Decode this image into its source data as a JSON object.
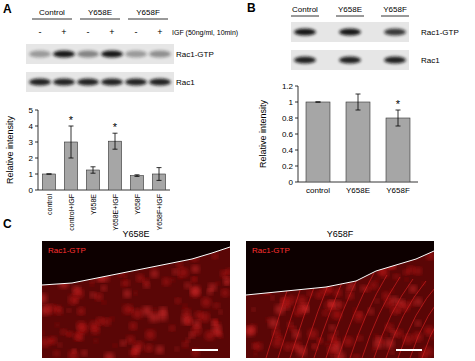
{
  "panel_labels": [
    "A",
    "B",
    "C"
  ],
  "blots": [
    {
      "groups": [
        "Control",
        "Y658E",
        "Y658F"
      ],
      "treatment_label": "IGF (50ng/ml, 10min)",
      "treatment_marks": [
        "-",
        "+",
        "-",
        "+",
        "-",
        "+"
      ],
      "rows": [
        "Rac1-GTP",
        "Rac1"
      ]
    },
    {
      "groups": [
        "Control",
        "Y658E",
        "Y658F"
      ],
      "rows": [
        "Rac1-GTP",
        "Rac1"
      ]
    }
  ],
  "images": {
    "titles": [
      "Y658E",
      "Y658F"
    ],
    "stain": "Rac1-GTP"
  },
  "chart_data": [
    {
      "type": "bar",
      "y_label": "Relative intensity",
      "categories": [
        "control",
        "control+IGF",
        "Y658E",
        "Y658E+IGF",
        "Y658F",
        "Y658F+IGF"
      ],
      "values": [
        1,
        3.0,
        1.25,
        3.05,
        0.9,
        1.0
      ],
      "errors": [
        0,
        1.0,
        0.2,
        0.5,
        0.05,
        0.4
      ],
      "significance": [
        null,
        "*",
        null,
        "*",
        null,
        null
      ],
      "color": "#a6a6a6",
      "ylim": [
        0,
        5
      ],
      "yticks": [
        0,
        1,
        2,
        3,
        4,
        5
      ]
    },
    {
      "type": "bar",
      "y_label": "Relative intensity",
      "categories": [
        "control",
        "Y658E",
        "Y658F"
      ],
      "values": [
        1,
        1.0,
        0.8
      ],
      "errors": [
        0,
        0.1,
        0.1
      ],
      "significance": [
        null,
        null,
        "*"
      ],
      "color": "#a6a6a6",
      "ylim": [
        0,
        1.2
      ],
      "yticks": [
        0,
        0.2,
        0.4,
        0.6,
        0.8,
        1,
        1.2
      ]
    }
  ]
}
